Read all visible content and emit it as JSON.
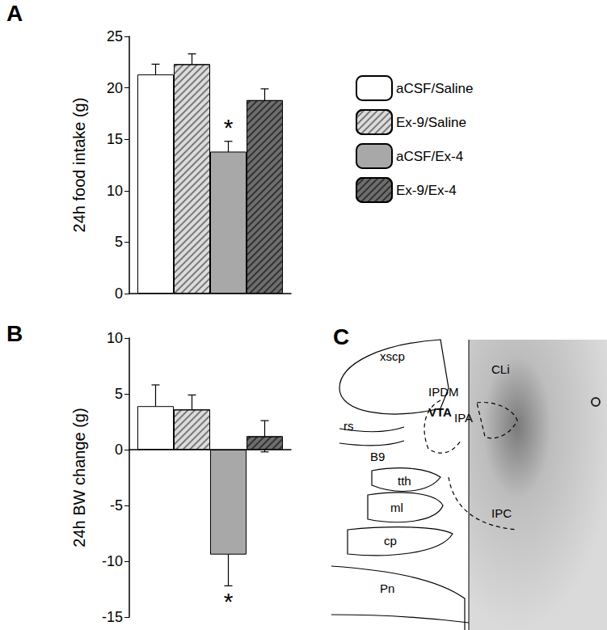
{
  "chart_data": [
    {
      "panel": "A",
      "type": "bar",
      "ylabel": "24h food intake (g)",
      "ylim": [
        0,
        25
      ],
      "yticks": [
        0,
        5,
        10,
        15,
        20,
        25
      ],
      "legend": "right",
      "tick_labels": "y",
      "series": [
        {
          "name": "aCSF/Saline",
          "color": "#ffffff",
          "values": [
            21.3
          ],
          "errors": [
            1.0
          ]
        },
        {
          "name": "Ex-9/Saline",
          "color": "#dcdcdc",
          "values": [
            22.3
          ],
          "errors": [
            1.0
          ]
        },
        {
          "name": "aCSF/Ex-4",
          "color": "#a8a8a8",
          "values": [
            13.8
          ],
          "errors": [
            1.0
          ]
        },
        {
          "name": "Ex-9/Ex-4",
          "color": "#6e6e6e",
          "values": [
            18.8
          ],
          "errors": [
            1.1
          ]
        }
      ],
      "annotations": [
        {
          "series": "aCSF/Ex-4",
          "text": "*"
        }
      ]
    },
    {
      "panel": "B",
      "type": "bar",
      "ylabel": "24h BW change (g)",
      "ylim": [
        -15,
        10
      ],
      "yticks": [
        -15,
        -10,
        -5,
        0,
        5,
        10
      ],
      "tick_labels": "y",
      "series": [
        {
          "name": "aCSF/Saline",
          "color": "#ffffff",
          "values": [
            3.9
          ],
          "errors": [
            1.9
          ]
        },
        {
          "name": "Ex-9/Saline",
          "color": "#dcdcdc",
          "values": [
            3.6
          ],
          "errors": [
            1.3
          ]
        },
        {
          "name": "aCSF/Ex-4",
          "color": "#a8a8a8",
          "values": [
            -9.4
          ],
          "errors": [
            2.8
          ]
        },
        {
          "name": "Ex-9/Ex-4",
          "color": "#6e6e6e",
          "values": [
            1.2
          ],
          "errors": [
            1.4
          ]
        }
      ],
      "annotations": [
        {
          "series": "aCSF/Ex-4",
          "text": "*"
        }
      ]
    }
  ],
  "diagram": {
    "panel": "C",
    "labels": [
      "xscp",
      "CLi",
      "IPDM",
      "VTA",
      "rs",
      "IPA",
      "B9",
      "tth",
      "ml",
      "IPC",
      "cp",
      "Pn"
    ]
  }
}
